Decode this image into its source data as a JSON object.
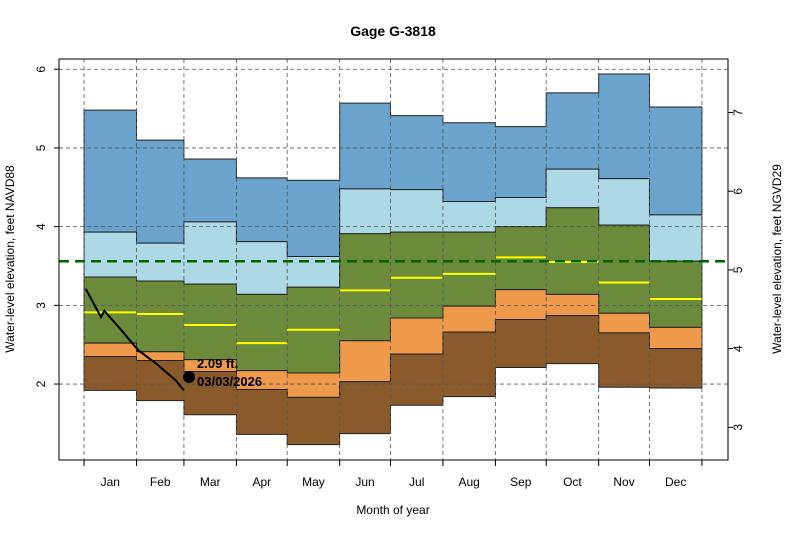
{
  "chart_data": {
    "type": "area",
    "title": "Gage G-3818",
    "xlabel": "Month of year",
    "ylabel": "Water-level elevation, feet NAVD88",
    "ylabel_right": "Water-level elevation, feet NGVD29",
    "ylim": [
      1.035,
      6.13
    ],
    "yticks": [
      2,
      3,
      4,
      5,
      6
    ],
    "yticks_right": [
      3,
      4,
      5,
      6,
      7
    ],
    "datum_offset_ngvd29": 1.55,
    "xlim_days": [
      -14.8,
      380.4
    ],
    "month_boundaries_days": [
      0,
      31,
      59,
      90,
      120,
      151,
      181,
      212,
      243,
      273,
      304,
      334,
      365
    ],
    "months": [
      "Jan",
      "Feb",
      "Mar",
      "Apr",
      "May",
      "Jun",
      "Jul",
      "Aug",
      "Sep",
      "Oct",
      "Nov",
      "Dec"
    ],
    "grid": true,
    "colors": {
      "max_band": "#6aa3cb",
      "upper_band": "#add8e6",
      "middle_band": "#6b8a3a",
      "lower_band": "#ee9a4a",
      "min_band": "#8b5a2b",
      "median": "#ffff00",
      "reference_line": "#006400",
      "current": "#000000"
    },
    "bands": {
      "top": [
        5.48,
        5.1,
        4.86,
        4.62,
        4.59,
        5.57,
        5.41,
        5.32,
        5.27,
        5.7,
        5.94,
        5.52
      ],
      "light_top": [
        3.93,
        3.79,
        4.06,
        3.81,
        3.62,
        4.48,
        4.47,
        4.32,
        4.37,
        4.73,
        4.61,
        4.15
      ],
      "green_top": [
        3.36,
        3.31,
        3.27,
        3.14,
        3.23,
        3.91,
        3.93,
        3.93,
        4.0,
        4.24,
        4.02,
        3.56
      ],
      "orange_top": [
        2.52,
        2.41,
        2.31,
        2.17,
        2.14,
        2.55,
        2.84,
        2.99,
        3.2,
        3.14,
        2.9,
        2.72
      ],
      "brown_top": [
        2.35,
        2.3,
        2.16,
        1.93,
        1.83,
        2.03,
        2.38,
        2.66,
        2.82,
        2.87,
        2.65,
        2.45
      ],
      "bottom": [
        1.92,
        1.79,
        1.61,
        1.36,
        1.23,
        1.37,
        1.73,
        1.84,
        2.21,
        2.26,
        1.96,
        1.95
      ],
      "median": [
        2.91,
        2.89,
        2.75,
        2.52,
        2.69,
        3.19,
        3.35,
        3.4,
        3.61,
        3.55,
        3.29,
        3.08
      ]
    },
    "reference_level": 3.56,
    "current_series": {
      "day": [
        1,
        10,
        12,
        21,
        32,
        42,
        54,
        59
      ],
      "value": [
        3.21,
        2.85,
        2.93,
        2.71,
        2.43,
        2.27,
        2.05,
        1.92
      ]
    },
    "latest_point": {
      "day": 62,
      "value": 2.09,
      "label_value": "2.09 ft.",
      "label_date": "03/03/2026"
    }
  }
}
